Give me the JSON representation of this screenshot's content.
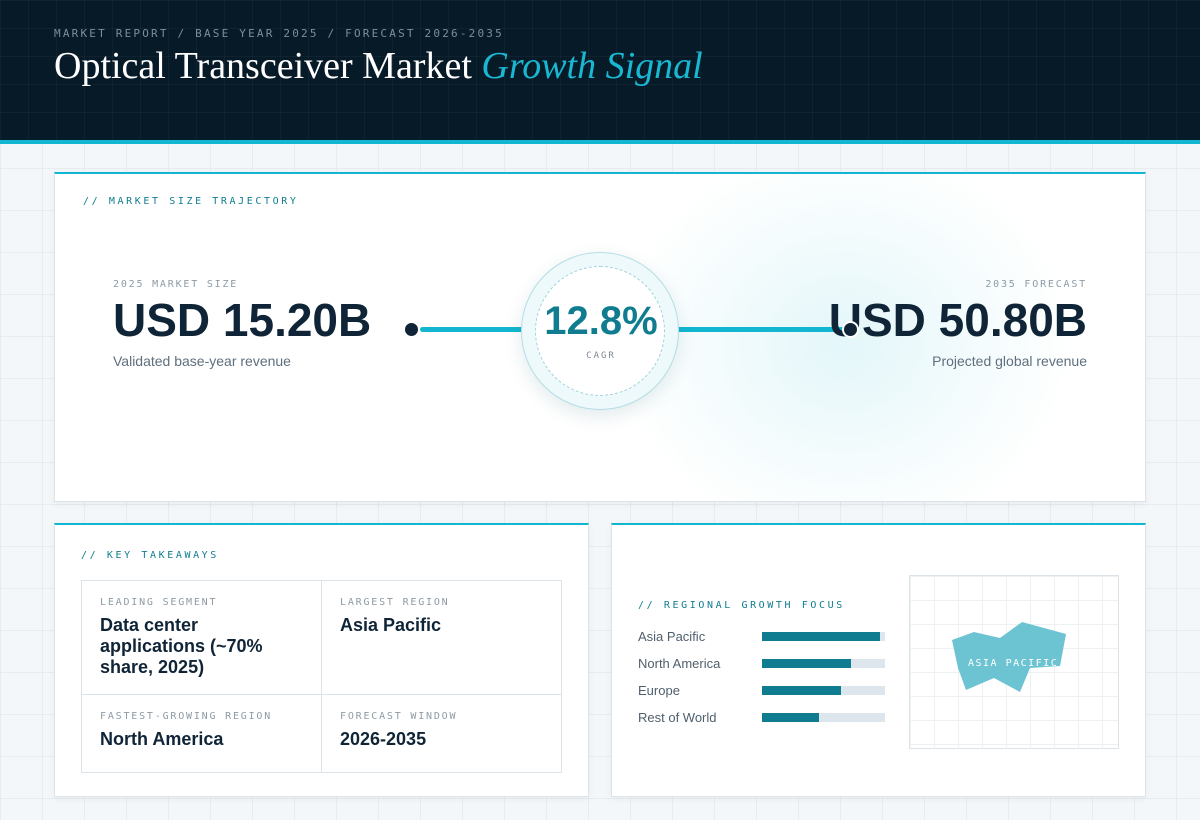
{
  "header": {
    "eyebrow": "MARKET REPORT / BASE YEAR 2025 / FORECAST 2026-2035",
    "title_main": "Optical Transceiver Market",
    "title_accent": "Growth Signal"
  },
  "trajectory": {
    "section_label": "// MARKET SIZE TRAJECTORY",
    "base": {
      "label": "2025 MARKET SIZE",
      "value": "USD 15.20B",
      "caption": "Validated base-year revenue"
    },
    "cagr": {
      "value": "12.8%",
      "label": "CAGR"
    },
    "forecast": {
      "label": "2035 FORECAST",
      "value": "USD 50.80B",
      "caption": "Projected global revenue"
    }
  },
  "takeaways": {
    "section_label": "// KEY TAKEAWAYS",
    "items": [
      {
        "label": "LEADING SEGMENT",
        "value": "Data center applications (~70% share, 2025)"
      },
      {
        "label": "LARGEST REGION",
        "value": "Asia Pacific"
      },
      {
        "label": "FASTEST-GROWING REGION",
        "value": "North America"
      },
      {
        "label": "FORECAST WINDOW",
        "value": "2026-2035"
      }
    ]
  },
  "regional": {
    "section_label": "// REGIONAL GROWTH FOCUS",
    "bars": [
      {
        "label": "Asia Pacific",
        "fraction": 0.96
      },
      {
        "label": "North America",
        "fraction": 0.72
      },
      {
        "label": "Europe",
        "fraction": 0.64
      },
      {
        "label": "Rest of World",
        "fraction": 0.46
      }
    ],
    "map_label": "ASIA PACIFIC"
  },
  "colors": {
    "accent": "#12b6d0",
    "teal": "#0f7d8f",
    "navy": "#071a28",
    "map_fill": "#6cc3d1"
  }
}
